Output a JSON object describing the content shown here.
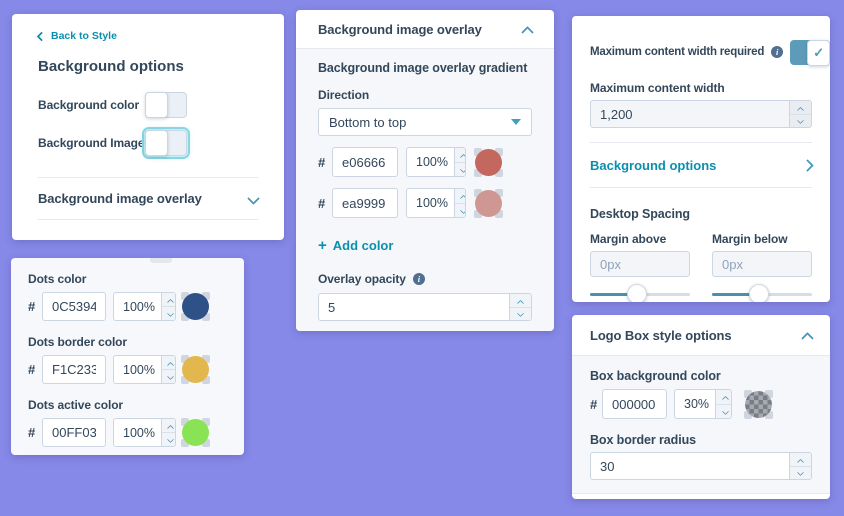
{
  "colors": {
    "page_bg": "#8789e8",
    "panel_bg": "#ffffff",
    "section_bg": "#f6f7fa",
    "text": "#33475b",
    "link_teal": "#0b8fae",
    "input_border": "#cbd6e2",
    "divider": "#e6eaf0",
    "chevron_accent": "#4697ba",
    "toggle_on": "#5d9cb8",
    "slider_track": "#4a90ae",
    "placeholder": "#8fa3ba"
  },
  "icons": {
    "back-chevron-icon": "css-chevron-left",
    "collapse-chevron-icon": "css-chevron-up",
    "expand-chevron-icon": "css-chevron-down",
    "forward-chevron-icon": "css-chevron-right",
    "dropdown-caret-icon": "css-triangle-down",
    "stepper-up-icon": "css-chevron-up",
    "stepper-down-icon": "css-chevron-down",
    "info-icon": "i",
    "check-icon": "✓",
    "add-icon": "+"
  },
  "glyphs": {
    "check": "✓",
    "info": "i",
    "plus": "+"
  },
  "background_options_panel": {
    "back_label": "Back to Style",
    "title": "Background options",
    "background_color_label": "Background color",
    "background_image_label": "Background Image",
    "overlay_accordion_label": "Background image overlay"
  },
  "overlay_panel": {
    "title": "Background image overlay",
    "gradient_title": "Background image overlay gradient",
    "direction_label": "Direction",
    "direction_value": "Bottom to top",
    "hash": "#",
    "rows": [
      {
        "hex": "e06666",
        "opacity": "100%",
        "swatch": "#c4675e"
      },
      {
        "hex": "ea9999",
        "opacity": "100%",
        "swatch": "#cf9792"
      }
    ],
    "add_color_label": "Add color",
    "opacity_label": "Overlay opacity",
    "opacity_value": "5"
  },
  "content_width_panel": {
    "required_label": "Maximum content width required",
    "width_label": "Maximum content width",
    "width_value": "1,200",
    "background_options_label": "Background options",
    "desktop_spacing_title": "Desktop Spacing",
    "margin_above_label": "Margin above",
    "margin_below_label": "Margin below",
    "margin_above_placeholder": "0px",
    "margin_below_placeholder": "0px"
  },
  "dots_panel": {
    "hash": "#",
    "rows": [
      {
        "label": "Dots color",
        "hex": "0C5394",
        "opacity": "100%",
        "swatch": "#2e5187"
      },
      {
        "label": "Dots border color",
        "hex": "F1C233",
        "opacity": "100%",
        "swatch": "#e2b84e"
      },
      {
        "label": "Dots active color",
        "hex": "00FF03",
        "opacity": "100%",
        "swatch": "#8ae354"
      }
    ]
  },
  "logo_box_panel": {
    "title": "Logo Box style options",
    "bg_color_label": "Box background color",
    "hash": "#",
    "bg_hex": "000000",
    "bg_opacity": "30%",
    "radius_label": "Box border radius",
    "radius_value": "30"
  }
}
